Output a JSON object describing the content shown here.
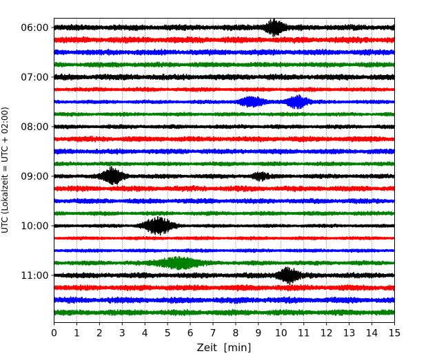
{
  "chart_data": {
    "type": "line",
    "subtype": "seismogram-dayplot",
    "xlabel": "Zeit  [min]",
    "ylabel": "UTC (Lokalzeit = UTC + 02:00)",
    "xlim": [
      0,
      15
    ],
    "xticks": [
      "0",
      "1",
      "2",
      "3",
      "4",
      "5",
      "6",
      "7",
      "8",
      "9",
      "10",
      "11",
      "12",
      "13",
      "14",
      "15"
    ],
    "yticks": [
      "06:00",
      "07:00",
      "08:00",
      "09:00",
      "10:00",
      "11:00"
    ],
    "grid": "vertical dotted at each minute",
    "row_interval_min": 15,
    "colors": [
      "#000000",
      "#ff0000",
      "#0000ff",
      "#008000"
    ],
    "rows": [
      {
        "start": "06:00",
        "noise": 0.8,
        "events": [
          {
            "min": 9.7,
            "amp": 2.6,
            "dur": 0.5
          }
        ]
      },
      {
        "start": "06:15",
        "noise": 0.85,
        "events": []
      },
      {
        "start": "06:30",
        "noise": 0.8,
        "events": []
      },
      {
        "start": "06:45",
        "noise": 0.7,
        "events": []
      },
      {
        "start": "07:00",
        "noise": 0.8,
        "events": []
      },
      {
        "start": "07:15",
        "noise": 0.55,
        "events": []
      },
      {
        "start": "07:30",
        "noise": 0.5,
        "events": [
          {
            "min": 8.7,
            "amp": 1.7,
            "dur": 0.7
          },
          {
            "min": 10.7,
            "amp": 2.2,
            "dur": 0.6
          }
        ]
      },
      {
        "start": "07:45",
        "noise": 0.5,
        "events": []
      },
      {
        "start": "08:00",
        "noise": 0.55,
        "events": []
      },
      {
        "start": "08:15",
        "noise": 0.75,
        "events": []
      },
      {
        "start": "08:30",
        "noise": 0.7,
        "events": []
      },
      {
        "start": "08:45",
        "noise": 0.55,
        "events": []
      },
      {
        "start": "09:00",
        "noise": 0.6,
        "events": [
          {
            "min": 2.6,
            "amp": 2.7,
            "dur": 0.6
          },
          {
            "min": 9.1,
            "amp": 1.1,
            "dur": 0.4
          }
        ]
      },
      {
        "start": "09:15",
        "noise": 0.75,
        "events": []
      },
      {
        "start": "09:30",
        "noise": 0.7,
        "events": []
      },
      {
        "start": "09:45",
        "noise": 0.55,
        "events": []
      },
      {
        "start": "10:00",
        "noise": 0.45,
        "events": [
          {
            "min": 4.6,
            "amp": 3.0,
            "dur": 0.8
          }
        ]
      },
      {
        "start": "10:15",
        "noise": 0.45,
        "events": []
      },
      {
        "start": "10:30",
        "noise": 0.45,
        "events": []
      },
      {
        "start": "10:45",
        "noise": 0.6,
        "events": [
          {
            "min": 5.5,
            "amp": 1.8,
            "dur": 1.2
          }
        ]
      },
      {
        "start": "11:00",
        "noise": 0.75,
        "events": [
          {
            "min": 10.3,
            "amp": 2.4,
            "dur": 0.6
          }
        ]
      },
      {
        "start": "11:15",
        "noise": 0.8,
        "events": []
      },
      {
        "start": "11:30",
        "noise": 0.85,
        "events": []
      },
      {
        "start": "11:45",
        "noise": 0.8,
        "events": []
      }
    ]
  }
}
